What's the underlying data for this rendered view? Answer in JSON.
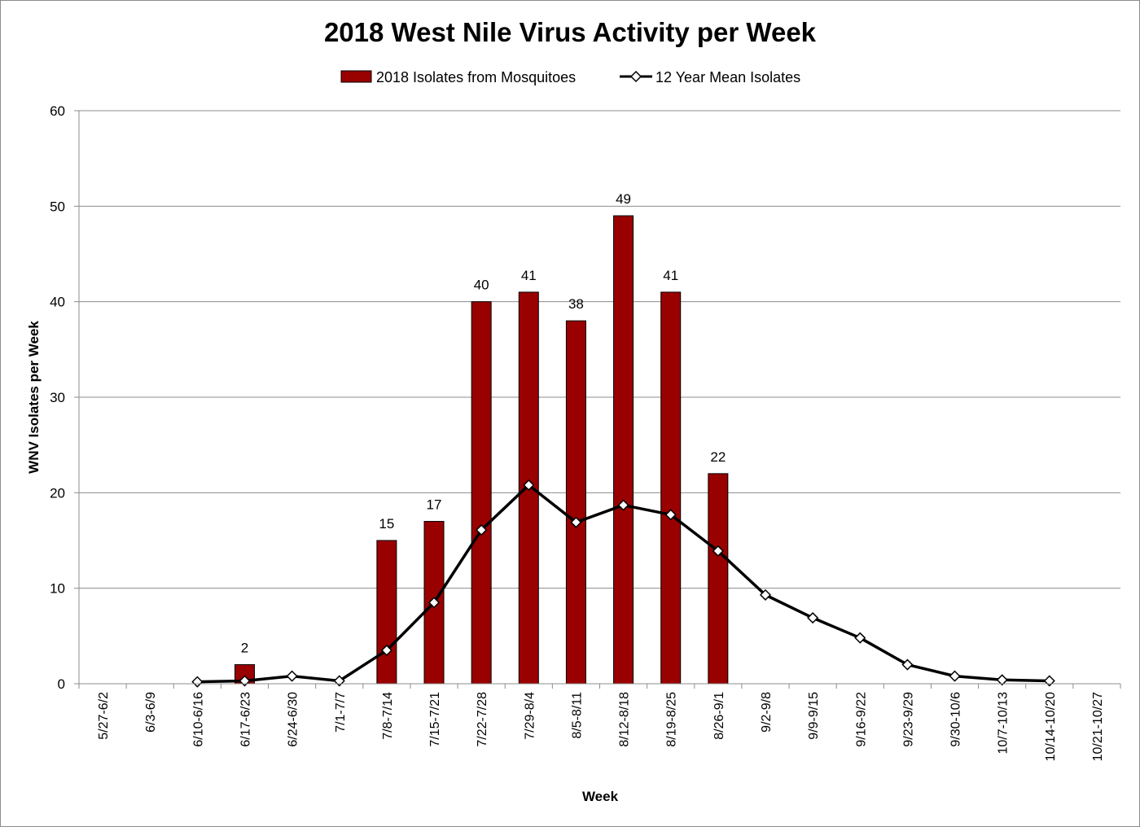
{
  "chart_data": {
    "type": "bar",
    "title": "2018 West Nile Virus Activity per Week",
    "xlabel": "Week",
    "ylabel": "WNV Isolates per Week",
    "ylim": [
      0,
      60
    ],
    "yticks": [
      0,
      10,
      20,
      30,
      40,
      50,
      60
    ],
    "grid": true,
    "legend_position": "top",
    "categories": [
      "5/27-6/2",
      "6/3-6/9",
      "6/10-6/16",
      "6/17-6/23",
      "6/24-6/30",
      "7/1-7/7",
      "7/8-7/14",
      "7/15-7/21",
      "7/22-7/28",
      "7/29-8/4",
      "8/5-8/11",
      "8/12-8/18",
      "8/19-8/25",
      "8/26-9/1",
      "9/2-9/8",
      "9/9-9/15",
      "9/16-9/22",
      "9/23-9/29",
      "9/30-10/6",
      "10/7-10/13",
      "10/14-10/20",
      "10/21-10/27"
    ],
    "series": [
      {
        "name": "2018 Isolates from Mosquitoes",
        "type": "bar",
        "color": "#990000",
        "values": [
          null,
          null,
          null,
          2,
          null,
          null,
          15,
          17,
          40,
          41,
          38,
          49,
          41,
          22,
          null,
          null,
          null,
          null,
          null,
          null,
          null,
          null
        ]
      },
      {
        "name": "12 Year Mean Isolates",
        "type": "line",
        "color": "#000000",
        "marker": "diamond",
        "values": [
          null,
          null,
          0.2,
          0.3,
          0.8,
          0.3,
          3.5,
          8.5,
          16.1,
          20.8,
          16.9,
          18.7,
          17.7,
          13.9,
          9.3,
          6.9,
          4.8,
          2.0,
          0.8,
          0.4,
          0.3,
          null
        ]
      }
    ]
  }
}
